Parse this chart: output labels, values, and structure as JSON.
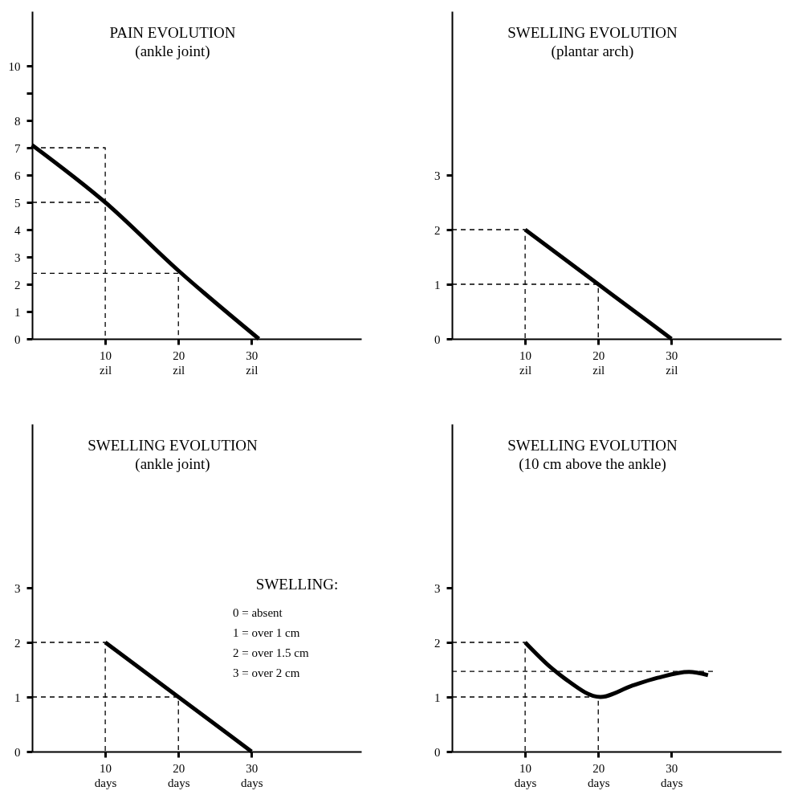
{
  "chart_data": [
    {
      "type": "line",
      "title": "PAIN EVOLUTION",
      "subtitle": "(ankle joint)",
      "grid": false,
      "line_style": "solid",
      "xlim": [
        0,
        45
      ],
      "xticks": [
        {
          "value": 10,
          "label": "10\nzil"
        },
        {
          "value": 20,
          "label": "20\nzil"
        },
        {
          "value": 30,
          "label": "30\nzil"
        }
      ],
      "ylim": [
        0,
        12
      ],
      "yticks": [
        0,
        1,
        2,
        3,
        4,
        5,
        6,
        7,
        8,
        {
          "value": 9,
          "label": null
        },
        10
      ],
      "series": [
        {
          "color": "#000000",
          "x": [
            0,
            10,
            20,
            31
          ],
          "values": [
            7.1,
            5,
            2.5,
            0
          ]
        },
        {
          "color": "#000000",
          "line_style": "dashed",
          "x": [
            0,
            10,
            10
          ],
          "values": [
            7,
            7,
            0
          ]
        },
        {
          "color": "#000000",
          "line_style": "dashed",
          "x": [
            0,
            10
          ],
          "values": [
            5,
            5
          ]
        },
        {
          "color": "#000000",
          "line_style": "dashed",
          "x": [
            0,
            20,
            20
          ],
          "values": [
            2.4,
            2.4,
            0
          ]
        }
      ]
    },
    {
      "type": "line",
      "title": "SWELLING EVOLUTION",
      "subtitle": "(plantar arch)",
      "grid": false,
      "line_style": "solid",
      "xlim": [
        0,
        45
      ],
      "xticks": [
        {
          "value": 10,
          "label": "10\nzil"
        },
        {
          "value": 20,
          "label": "20\nzil"
        },
        {
          "value": 30,
          "label": "30\nzil"
        }
      ],
      "ylim": [
        0,
        6
      ],
      "yticks": [
        0,
        1,
        2,
        3
      ],
      "series": [
        {
          "color": "#000000",
          "x": [
            10,
            20,
            30
          ],
          "values": [
            2,
            1,
            0
          ]
        },
        {
          "color": "#000000",
          "line_style": "dashed",
          "x": [
            0,
            10,
            10
          ],
          "values": [
            2,
            2,
            0
          ]
        },
        {
          "color": "#000000",
          "line_style": "dashed",
          "x": [
            0,
            20,
            20
          ],
          "values": [
            1,
            1,
            0
          ]
        }
      ]
    },
    {
      "type": "line",
      "title": "SWELLING EVOLUTION",
      "subtitle": "(ankle joint)",
      "grid": false,
      "line_style": "solid",
      "xlim": [
        0,
        45
      ],
      "xticks": [
        {
          "value": 10,
          "label": "10\ndays"
        },
        {
          "value": 20,
          "label": "20\ndays"
        },
        {
          "value": 30,
          "label": "30\ndays"
        }
      ],
      "ylim": [
        0,
        6
      ],
      "yticks": [
        0,
        1,
        2,
        3
      ],
      "annotations": [
        "SWELLING:",
        "0 = absent",
        "1 = over 1 cm",
        "2 = over 1.5 cm",
        "3 = over 2 cm"
      ],
      "series": [
        {
          "color": "#000000",
          "x": [
            10,
            20,
            30
          ],
          "values": [
            2,
            1,
            0
          ]
        },
        {
          "color": "#000000",
          "line_style": "dashed",
          "x": [
            0,
            10,
            10
          ],
          "values": [
            2,
            2,
            0
          ]
        },
        {
          "color": "#000000",
          "line_style": "dashed",
          "x": [
            0,
            20,
            20
          ],
          "values": [
            1,
            1,
            0
          ]
        }
      ]
    },
    {
      "type": "line",
      "title": "SWELLING EVOLUTION",
      "subtitle": "(10 cm above the ankle)",
      "grid": false,
      "line_style": "solid",
      "xlim": [
        0,
        45
      ],
      "xticks": [
        {
          "value": 10,
          "label": "10\ndays"
        },
        {
          "value": 20,
          "label": "20\ndays"
        },
        {
          "value": 30,
          "label": "30\ndays"
        }
      ],
      "ylim": [
        0,
        6
      ],
      "yticks": [
        0,
        1,
        2,
        3
      ],
      "series": [
        {
          "color": "#000000",
          "x": [
            10,
            13.6,
            15.4,
            20.3,
            24.5,
            28.1,
            32.4,
            35
          ],
          "values": [
            2,
            1.53,
            1.34,
            1,
            1.2,
            1.35,
            1.46,
            1.4
          ]
        },
        {
          "color": "#000000",
          "line_style": "dashed",
          "x": [
            0,
            10,
            10
          ],
          "values": [
            2,
            2,
            0
          ]
        },
        {
          "color": "#000000",
          "line_style": "dashed",
          "x": [
            0,
            35.7
          ],
          "values": [
            1.47,
            1.47
          ]
        },
        {
          "color": "#000000",
          "line_style": "dashed",
          "x": [
            0,
            20,
            20
          ],
          "values": [
            1,
            1,
            0
          ]
        }
      ]
    }
  ]
}
